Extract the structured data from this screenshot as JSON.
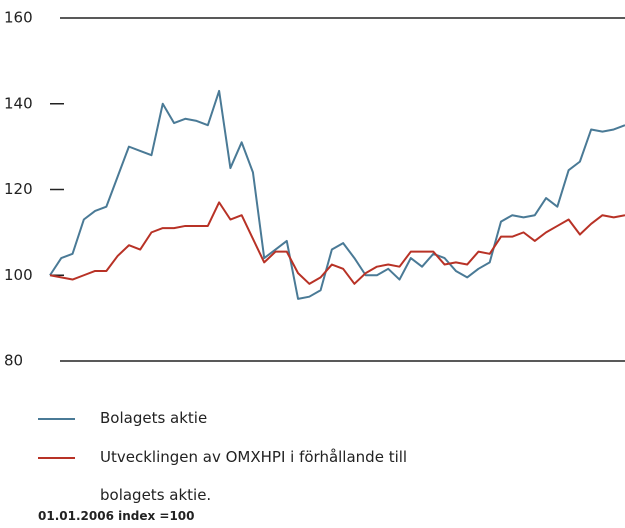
{
  "chart_data": {
    "type": "line",
    "categories": [
      null,
      null,
      null,
      null,
      null,
      null,
      null,
      null,
      null,
      null,
      null,
      null,
      null,
      null,
      null,
      null,
      null,
      null,
      null,
      null,
      null,
      null,
      null,
      null,
      null,
      null,
      null,
      null,
      null,
      null,
      null,
      null,
      null,
      null,
      null,
      null,
      null,
      null,
      null,
      null,
      null,
      null,
      null,
      null,
      null,
      null,
      null,
      null,
      null,
      null,
      null,
      null
    ],
    "series": [
      {
        "name": "Bolagets aktie",
        "color": "#4a7a96",
        "values": [
          100,
          104,
          105,
          113,
          115,
          116,
          123,
          130,
          129,
          128,
          140,
          135.5,
          136.5,
          136,
          135,
          143,
          125,
          131,
          124,
          104,
          106,
          108,
          94.5,
          95,
          96.5,
          106,
          107.5,
          104,
          100,
          100,
          101.5,
          99,
          104,
          102,
          105,
          104,
          101,
          99.5,
          101.5,
          103,
          112.5,
          114,
          113.5,
          114,
          118,
          116,
          124.5,
          126.5,
          134,
          133.5,
          134,
          135
        ]
      },
      {
        "name": "Utvecklingen av OMXHPI i förhållande till bolagets aktie.",
        "color": "#b83226",
        "values": [
          100,
          99.5,
          99,
          100,
          101,
          101,
          104.5,
          107,
          106,
          110,
          111,
          111,
          111.5,
          111.5,
          111.5,
          117,
          113,
          114,
          108.5,
          103,
          105.5,
          105.5,
          100.5,
          98,
          99.5,
          102.5,
          101.5,
          98,
          100.5,
          102,
          102.5,
          102,
          105.5,
          105.5,
          105.5,
          102.5,
          103,
          102.5,
          105.5,
          105,
          109,
          109,
          110,
          108,
          110,
          111.5,
          113,
          109.5,
          112,
          114,
          113.5,
          114
        ]
      }
    ],
    "ylim": [
      80,
      160
    ],
    "yticks": [
      80,
      100,
      120,
      140,
      160
    ],
    "note": "01.01.2006 index =100"
  }
}
